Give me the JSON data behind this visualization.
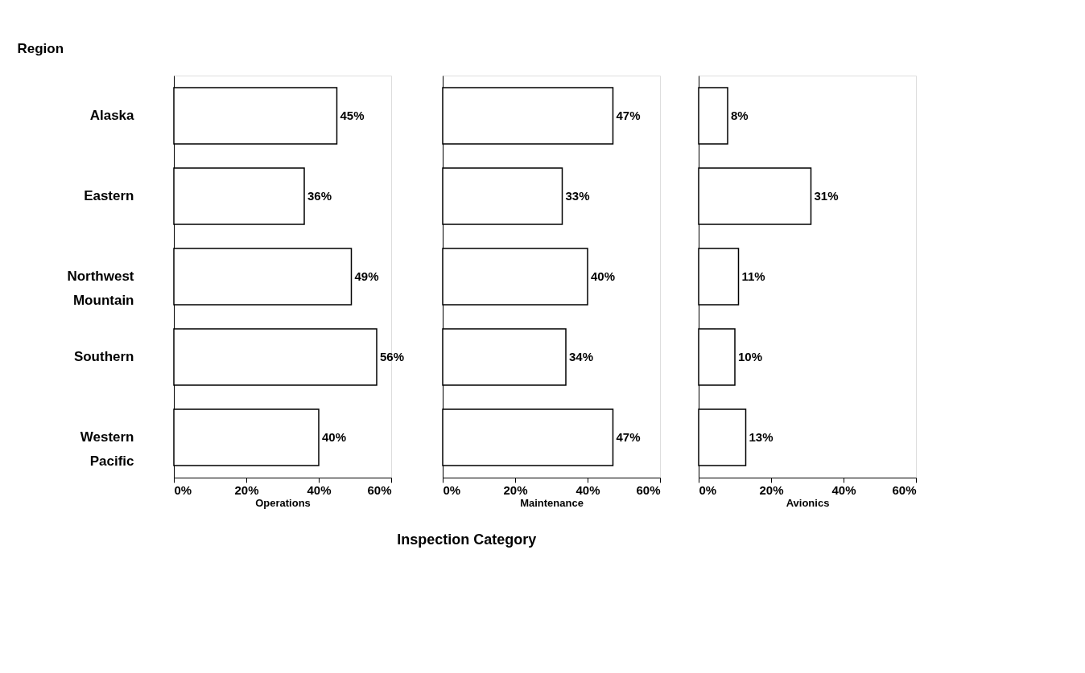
{
  "chart_data": [
    {
      "type": "bar",
      "orientation": "horizontal",
      "ylabel": "Region",
      "xlabel": "Operations",
      "categories": [
        "Alaska",
        "Eastern",
        "Northwest Mountain",
        "Southern",
        "Western Pacific"
      ],
      "values": [
        45,
        36,
        49,
        56,
        40
      ],
      "value_labels": [
        "45%",
        "36%",
        "49%",
        "56%",
        "40%"
      ],
      "color": "#ffffff",
      "xlim": [
        0,
        60
      ],
      "xticks": [
        {
          "value": 0,
          "label": "0%"
        },
        {
          "value": 20,
          "label": "20%"
        },
        {
          "value": 40,
          "label": "40%"
        },
        {
          "value": 60,
          "label": "60%"
        }
      ],
      "grid": false,
      "annotations": [
        "Inspection  Category"
      ]
    },
    {
      "type": "bar",
      "orientation": "horizontal",
      "xlabel": "Maintenance",
      "values": [
        47,
        33,
        40,
        34,
        47
      ],
      "value_labels": [
        "47%",
        "33%",
        "40%",
        "34%",
        "47%"
      ],
      "color": "#ffffff",
      "xlim": [
        0,
        60
      ],
      "xticks": [
        {
          "value": 0,
          "label": "0%"
        },
        {
          "value": 20,
          "label": "20%"
        },
        {
          "value": 40,
          "label": "40%"
        },
        {
          "value": 60,
          "label": "60%"
        }
      ],
      "grid": false,
      "tick_labels": "x"
    },
    {
      "type": "bar",
      "orientation": "horizontal",
      "xlabel": "Avionics",
      "values": [
        8,
        31,
        11,
        10,
        13
      ],
      "value_labels": [
        "8%",
        "31%",
        "11%",
        "10%",
        "13%"
      ],
      "color": "#ffffff",
      "xlim": [
        0,
        60
      ],
      "xticks": [
        {
          "value": 0,
          "label": "0%"
        },
        {
          "value": 20,
          "label": "20%"
        },
        {
          "value": 40,
          "label": "40%"
        },
        {
          "value": 60,
          "label": "60%"
        }
      ],
      "grid": false,
      "tick_labels": "x"
    }
  ]
}
